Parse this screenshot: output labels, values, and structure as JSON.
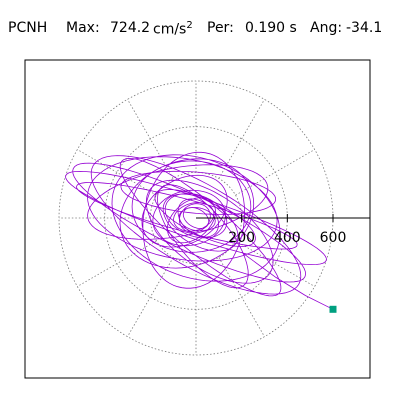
{
  "header": {
    "station": "PCNH",
    "max_label": "Max:",
    "max_value": "724.2",
    "max_unit": "cm/s",
    "max_unit_exp": "2",
    "period_label": "Per:",
    "period_value": "0.190 s",
    "angle_label": "Ang:",
    "angle_value": "-34.1"
  },
  "chart_data": {
    "type": "scatter",
    "subtype": "polar-particle-motion",
    "units": "cm/s2",
    "radial_rings": [
      200,
      400,
      600
    ],
    "radial_tick_labels": [
      "200",
      "400",
      "600"
    ],
    "radial_max": 600,
    "spoke_angles_deg": [
      0,
      30,
      60,
      90,
      120,
      150,
      180,
      210,
      240,
      270,
      300,
      330
    ],
    "grid": true,
    "grid_style": "dotted",
    "trace": {
      "color": "#9400d3",
      "start_marker_color": "#00a080",
      "end_point": [
        600,
        -400
      ],
      "loops": [
        {
          "rx": 600,
          "ry": 90,
          "rot": -18,
          "cx": 0,
          "cy": 0
        },
        {
          "rx": 560,
          "ry": 120,
          "rot": -25,
          "cx": -30,
          "cy": -20
        },
        {
          "rx": 520,
          "ry": 180,
          "rot": -30,
          "cx": 0,
          "cy": -30
        },
        {
          "rx": 500,
          "ry": 70,
          "rot": -15,
          "cx": -40,
          "cy": 10
        },
        {
          "rx": 450,
          "ry": 110,
          "rot": -40,
          "cx": 20,
          "cy": -40
        },
        {
          "rx": 420,
          "ry": 220,
          "rot": -10,
          "cx": -60,
          "cy": 40
        },
        {
          "rx": 400,
          "ry": 150,
          "rot": 10,
          "cx": -80,
          "cy": 70
        },
        {
          "rx": 380,
          "ry": 260,
          "rot": -20,
          "cx": 0,
          "cy": 0
        },
        {
          "rx": 340,
          "ry": 90,
          "rot": -5,
          "cx": 10,
          "cy": 110
        },
        {
          "rx": 320,
          "ry": 160,
          "rot": -35,
          "cx": 60,
          "cy": -60
        },
        {
          "rx": 300,
          "ry": 230,
          "rot": 20,
          "cx": -40,
          "cy": 20
        },
        {
          "rx": 280,
          "ry": 110,
          "rot": -50,
          "cx": 30,
          "cy": -80
        },
        {
          "rx": 260,
          "ry": 200,
          "rot": 0,
          "cx": -20,
          "cy": 50
        },
        {
          "rx": 240,
          "ry": 80,
          "rot": -25,
          "cx": 40,
          "cy": 0
        },
        {
          "rx": 220,
          "ry": 300,
          "rot": -10,
          "cx": -10,
          "cy": -10
        },
        {
          "rx": 200,
          "ry": 140,
          "rot": 30,
          "cx": -50,
          "cy": 30
        },
        {
          "rx": 180,
          "ry": 100,
          "rot": -30,
          "cx": 20,
          "cy": -20
        },
        {
          "rx": 160,
          "ry": 120,
          "rot": 10,
          "cx": -30,
          "cy": 0
        },
        {
          "rx": 140,
          "ry": 90,
          "rot": -20,
          "cx": 0,
          "cy": 10
        },
        {
          "rx": 120,
          "ry": 80,
          "rot": 40,
          "cx": -20,
          "cy": -10
        },
        {
          "rx": 100,
          "ry": 70,
          "rot": -40,
          "cx": 10,
          "cy": 0
        },
        {
          "rx": 90,
          "ry": 60,
          "rot": 15,
          "cx": -10,
          "cy": 5
        },
        {
          "rx": 80,
          "ry": 50,
          "rot": -10,
          "cx": 5,
          "cy": -5
        },
        {
          "rx": 70,
          "ry": 60,
          "rot": 30,
          "cx": -5,
          "cy": 0
        },
        {
          "rx": 60,
          "ry": 40,
          "rot": -30,
          "cx": 0,
          "cy": 0
        }
      ]
    }
  }
}
